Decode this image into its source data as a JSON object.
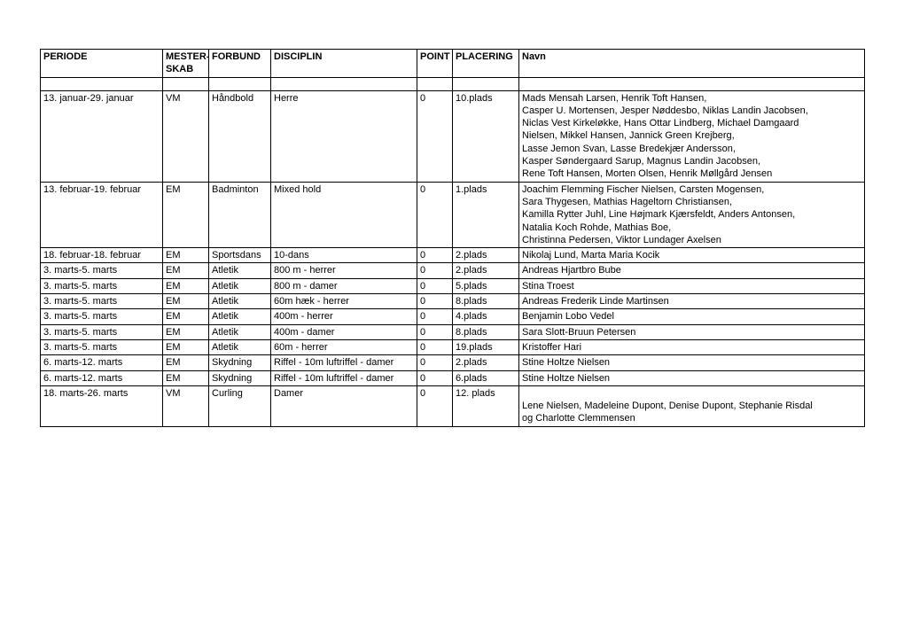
{
  "columns": {
    "periode": "PERIODE",
    "mesterskab_line1": "MESTER-",
    "mesterskab_line2": "SKAB",
    "forbund": "FORBUND",
    "disciplin": "DISCIPLIN",
    "point": "POINT",
    "placering": "PLACERING",
    "navn": "Navn"
  },
  "rows": [
    {
      "periode": "13. januar-29. januar",
      "mesterskab": "VM",
      "forbund": "Håndbold",
      "disciplin": "Herre",
      "point": "0",
      "placering": "10.plads",
      "navn": "Mads Mensah Larsen, Henrik Toft Hansen,\nCasper U. Mortensen, Jesper Nøddesbo, Niklas Landin Jacobsen,\nNiclas Vest Kirkeløkke, Hans Ottar Lindberg, Michael Damgaard\nNielsen, Mikkel Hansen, Jannick Green Krejberg,\nLasse Jemon Svan, Lasse Bredekjær Andersson,\nKasper Søndergaard Sarup, Magnus Landin Jacobsen,\nRene Toft Hansen, Morten Olsen, Henrik Møllgård Jensen"
    },
    {
      "periode": "13. februar-19. februar",
      "mesterskab": "EM",
      "forbund": "Badminton",
      "disciplin": "Mixed hold",
      "point": "0",
      "placering": "1.plads",
      "navn": "Joachim Flemming Fischer Nielsen, Carsten Mogensen,\nSara Thygesen, Mathias Hageltorn Christiansen,\nKamilla Rytter Juhl, Line Højmark Kjærsfeldt, Anders Antonsen,\nNatalia Koch Rohde, Mathias Boe,\nChristinna Pedersen, Viktor Lundager Axelsen"
    },
    {
      "periode": "18. februar-18. februar",
      "mesterskab": "EM",
      "forbund": "Sportsdans",
      "disciplin": "10-dans",
      "point": "0",
      "placering": "2.plads",
      "navn": "Nikolaj Lund, Marta Maria Kocik"
    },
    {
      "periode": "3. marts-5. marts",
      "mesterskab": "EM",
      "forbund": "Atletik",
      "disciplin": "800 m - herrer",
      "point": "0",
      "placering": "2.plads",
      "navn": "Andreas Hjartbro Bube"
    },
    {
      "periode": "3. marts-5. marts",
      "mesterskab": "EM",
      "forbund": "Atletik",
      "disciplin": "800 m - damer",
      "point": "0",
      "placering": "5.plads",
      "navn": "Stina Troest"
    },
    {
      "periode": "3. marts-5. marts",
      "mesterskab": "EM",
      "forbund": "Atletik",
      "disciplin": "60m hæk - herrer",
      "point": "0",
      "placering": "8.plads",
      "navn": "Andreas Frederik Linde Martinsen"
    },
    {
      "periode": "3. marts-5. marts",
      "mesterskab": "EM",
      "forbund": "Atletik",
      "disciplin": "400m - herrer",
      "point": "0",
      "placering": "4.plads",
      "navn": "Benjamin Lobo Vedel"
    },
    {
      "periode": "3. marts-5. marts",
      "mesterskab": "EM",
      "forbund": "Atletik",
      "disciplin": "400m - damer",
      "point": "0",
      "placering": "8.plads",
      "navn": "Sara Slott-Bruun Petersen"
    },
    {
      "periode": "3. marts-5. marts",
      "mesterskab": "EM",
      "forbund": "Atletik",
      "disciplin": "60m - herrer",
      "point": "0",
      "placering": "19.plads",
      "navn": "Kristoffer Hari"
    },
    {
      "periode": "6. marts-12. marts",
      "mesterskab": "EM",
      "forbund": "Skydning",
      "disciplin": "Riffel - 10m luftriffel - damer",
      "point": "0",
      "placering": "2.plads",
      "navn": "Stine Holtze Nielsen"
    },
    {
      "periode": "6. marts-12. marts",
      "mesterskab": "EM",
      "forbund": "Skydning",
      "disciplin": "Riffel - 10m luftriffel - damer",
      "point": "0",
      "placering": "6.plads",
      "navn": "Stine Holtze Nielsen"
    },
    {
      "periode": "18. marts-26. marts",
      "mesterskab": "VM",
      "forbund": "Curling",
      "disciplin": "Damer",
      "point": "0",
      "placering": "12. plads",
      "navn": "\nLene Nielsen, Madeleine Dupont, Denise Dupont, Stephanie Risdal\nog Charlotte Clemmensen"
    }
  ]
}
